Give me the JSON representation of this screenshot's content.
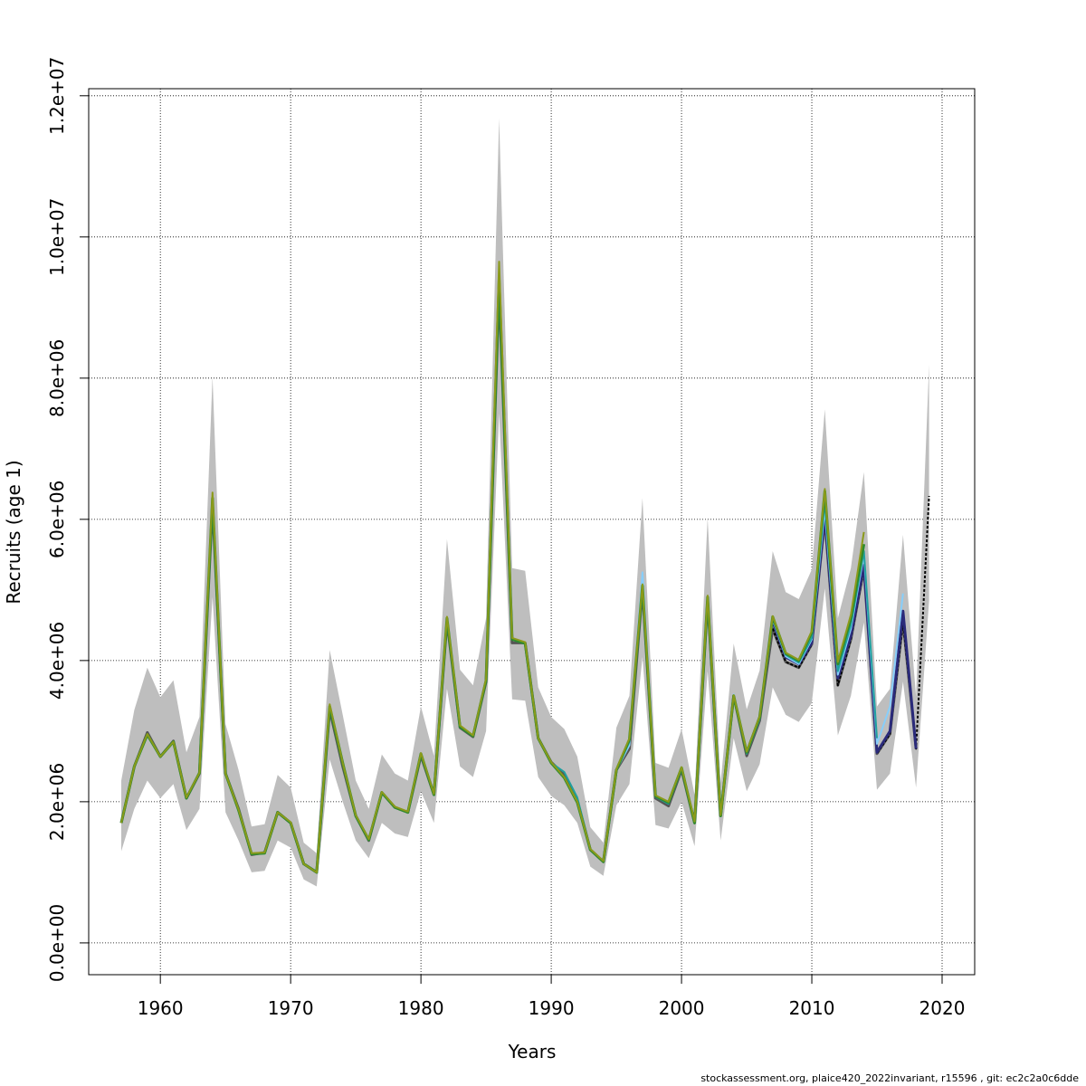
{
  "chart_data": {
    "type": "line",
    "title": "",
    "xlabel": "Years",
    "ylabel": "Recruits (age 1)",
    "xlim": [
      1954.5,
      2022.5
    ],
    "ylim": [
      -450000,
      12100000
    ],
    "xticks": [
      1960,
      1970,
      1980,
      1990,
      2000,
      2010,
      2020
    ],
    "xtick_labels": [
      "1960",
      "1970",
      "1980",
      "1990",
      "2000",
      "2010",
      "2020"
    ],
    "yticks": [
      0,
      2000000,
      4000000,
      6000000,
      8000000,
      10000000,
      12000000
    ],
    "ytick_labels": [
      "0.0e+00",
      "2.0e+06",
      "4.0e+06",
      "6.0e+06",
      "8.0e+06",
      "1.0e+07",
      "1.2e+07"
    ],
    "grid": true,
    "colors": {
      "band": "#bebebe",
      "base": "#555555",
      "latest": "#000000",
      "olive": "#8b9a1a",
      "green": "#2e8b2e",
      "teal": "#20a0a0",
      "navy": "#2a2a7a",
      "lightblue": "#87cefa"
    },
    "band": {
      "x": [
        1957,
        1958,
        1959,
        1960,
        1961,
        1962,
        1963,
        1964,
        1965,
        1966,
        1967,
        1968,
        1969,
        1970,
        1971,
        1972,
        1973,
        1974,
        1975,
        1976,
        1977,
        1978,
        1979,
        1980,
        1981,
        1982,
        1983,
        1984,
        1985,
        1986,
        1987,
        1988,
        1989,
        1990,
        1991,
        1992,
        1993,
        1994,
        1995,
        1996,
        1997,
        1998,
        1999,
        2000,
        2001,
        2002,
        2003,
        2004,
        2005,
        2006,
        2007,
        2008,
        2009,
        2010,
        2011,
        2012,
        2013,
        2014,
        2015,
        2016,
        2017,
        2018,
        2019
      ],
      "lower": [
        1300000,
        1900000,
        2300000,
        2050000,
        2250000,
        1600000,
        1900000,
        4900000,
        1850000,
        1450000,
        1000000,
        1020000,
        1450000,
        1350000,
        900000,
        800000,
        2600000,
        2000000,
        1450000,
        1200000,
        1700000,
        1550000,
        1500000,
        2150000,
        1700000,
        3600000,
        2500000,
        2350000,
        3000000,
        7500000,
        3450000,
        3430000,
        2350000,
        2080000,
        1950000,
        1700000,
        1080000,
        950000,
        1950000,
        2250000,
        4050000,
        1670000,
        1620000,
        2000000,
        1370000,
        3850000,
        1450000,
        2900000,
        2150000,
        2530000,
        3620000,
        3230000,
        3130000,
        3400000,
        5020000,
        2940000,
        3500000,
        4540000,
        2170000,
        2400000,
        3700000,
        2200000,
        4850000
      ],
      "upper": [
        2300000,
        3300000,
        3900000,
        3480000,
        3720000,
        2700000,
        3200000,
        8020000,
        3100000,
        2450000,
        1650000,
        1680000,
        2380000,
        2200000,
        1420000,
        1270000,
        4150000,
        3230000,
        2300000,
        1900000,
        2670000,
        2400000,
        2300000,
        3350000,
        2650000,
        5720000,
        3870000,
        3650000,
        4600000,
        11680000,
        5310000,
        5270000,
        3620000,
        3200000,
        3030000,
        2640000,
        1640000,
        1420000,
        3050000,
        3500000,
        6300000,
        2550000,
        2480000,
        3030000,
        2100000,
        6020000,
        2270000,
        4240000,
        3310000,
        3860000,
        5550000,
        4970000,
        4870000,
        5290000,
        7560000,
        4600000,
        5310000,
        6670000,
        3350000,
        3600000,
        5780000,
        3490000,
        8190000
      ]
    },
    "series": [
      {
        "key": "base",
        "x": [
          1957,
          1958,
          1959,
          1960,
          1961,
          1962,
          1963,
          1964,
          1965,
          1966,
          1967,
          1968,
          1969,
          1970,
          1971,
          1972,
          1973,
          1974,
          1975,
          1976,
          1977,
          1978,
          1979,
          1980,
          1981,
          1982,
          1983,
          1984,
          1985,
          1986,
          1987,
          1988,
          1989,
          1990,
          1991,
          1992,
          1993,
          1994,
          1995,
          1996,
          1997,
          1998,
          1999,
          2000,
          2001,
          2002,
          2003,
          2004,
          2005,
          2006,
          2007,
          2008,
          2009,
          2010,
          2011,
          2012,
          2013,
          2014,
          2015,
          2016,
          2017,
          2018
        ],
        "values": [
          1700000,
          2500000,
          2980000,
          2640000,
          2860000,
          2050000,
          2400000,
          6200000,
          2400000,
          1900000,
          1250000,
          1280000,
          1850000,
          1700000,
          1120000,
          1000000,
          3300000,
          2500000,
          1800000,
          1450000,
          2130000,
          1920000,
          1850000,
          2650000,
          2100000,
          4550000,
          3050000,
          2920000,
          3700000,
          9250000,
          4250000,
          4250000,
          2900000,
          2560000,
          2380000,
          2020000,
          1320000,
          1150000,
          2450000,
          2750000,
          5000000,
          2050000,
          1940000,
          2450000,
          1700000,
          4850000,
          1800000,
          3500000,
          2650000,
          3150000,
          4450000,
          3980000,
          3900000,
          4230000,
          6000000,
          3650000,
          4300000,
          5300000,
          2680000,
          2960000,
          4550000,
          2750000
        ],
        "width": 3
      },
      {
        "key": "latest",
        "x": [
          2007,
          2008,
          2009,
          2010,
          2011,
          2012,
          2013,
          2014,
          2015,
          2016,
          2017,
          2018,
          2019
        ],
        "values": [
          4450000,
          3980000,
          3900000,
          4230000,
          6000000,
          3650000,
          4300000,
          5300000,
          2680000,
          2960000,
          4550000,
          2750000,
          6330000
        ],
        "width": 2,
        "dash": "3,2"
      },
      {
        "key": "navy",
        "x": [
          2007,
          2008,
          2009,
          2010,
          2011,
          2012,
          2013,
          2014,
          2015,
          2016,
          2017,
          2018
        ],
        "values": [
          4550000,
          4050000,
          3950000,
          4250000,
          6050000,
          3750000,
          4350000,
          5350000,
          2700000,
          3000000,
          4700000,
          2750000
        ],
        "width": 3
      },
      {
        "key": "lightblue",
        "x": [
          1995,
          1996,
          1997,
          1998,
          1999,
          2000,
          2001,
          2002,
          2003,
          2004,
          2005,
          2006,
          2007,
          2008,
          2009,
          2010,
          2011,
          2012,
          2013,
          2014,
          2015,
          2016,
          2017
        ],
        "values": [
          2450000,
          2800000,
          5250000,
          2080000,
          1980000,
          2470000,
          1720000,
          4880000,
          1820000,
          3520000,
          2690000,
          3180000,
          4580000,
          4060000,
          3950000,
          4300000,
          6150000,
          3800000,
          4450000,
          5500000,
          2820000,
          3350000,
          4950000
        ],
        "width": 2
      },
      {
        "key": "teal",
        "x": [
          1990,
          1991,
          1992,
          1993,
          1994,
          1995,
          1996,
          1997,
          1998,
          1999,
          2000,
          2001,
          2002,
          2003,
          2004,
          2005,
          2006,
          2007,
          2008,
          2009,
          2010,
          2011,
          2012,
          2013,
          2014,
          2015
        ],
        "values": [
          2550000,
          2420000,
          2060000,
          1330000,
          1150000,
          2450000,
          2850000,
          5050000,
          2070000,
          1970000,
          2460000,
          1710000,
          4870000,
          1810000,
          3510000,
          2680000,
          3170000,
          4600000,
          4080000,
          3970000,
          4320000,
          6250000,
          3850000,
          4500000,
          5550000,
          2900000
        ],
        "width": 2
      },
      {
        "key": "green",
        "x": [
          1957,
          1958,
          1959,
          1960,
          1961,
          1962,
          1963,
          1964,
          1965,
          1966,
          1967,
          1968,
          1969,
          1970,
          1971,
          1972,
          1973,
          1974,
          1975,
          1976,
          1977,
          1978,
          1979,
          1980,
          1981,
          1982,
          1983,
          1984,
          1985,
          1986,
          1987,
          1988,
          1989,
          1990,
          1991,
          1992,
          1993,
          1994,
          1995,
          1996,
          1997,
          1998,
          1999,
          2000,
          2001,
          2002,
          2003,
          2004,
          2005,
          2006,
          2007,
          2008,
          2009,
          2010,
          2011,
          2012,
          2013,
          2014
        ],
        "values": [
          1700000,
          2500000,
          2950000,
          2640000,
          2850000,
          2050000,
          2410000,
          6300000,
          2400000,
          1880000,
          1260000,
          1270000,
          1850000,
          1700000,
          1120000,
          1000000,
          3350000,
          2550000,
          1800000,
          1460000,
          2130000,
          1920000,
          1850000,
          2680000,
          2100000,
          4600000,
          3060000,
          2930000,
          3720000,
          9400000,
          4300000,
          4240000,
          2900000,
          2550000,
          2340000,
          1990000,
          1320000,
          1150000,
          2450000,
          2880000,
          5060000,
          2080000,
          1990000,
          2480000,
          1700000,
          4900000,
          1800000,
          3500000,
          2700000,
          3200000,
          4620000,
          4100000,
          4000000,
          4400000,
          6400000,
          3950000,
          4600000,
          5650000
        ],
        "width": 3
      },
      {
        "key": "olive",
        "x": [
          1957,
          1958,
          1959,
          1960,
          1961,
          1962,
          1963,
          1964,
          1965,
          1966,
          1967,
          1968,
          1969,
          1970,
          1971,
          1972,
          1973,
          1974,
          1975,
          1976,
          1977,
          1978,
          1979,
          1980,
          1981,
          1982,
          1983,
          1984,
          1985,
          1986,
          1987,
          1988,
          1989,
          1990,
          1991,
          1992,
          1993,
          1994,
          1995,
          1996,
          1997,
          1998,
          1999,
          2000,
          2001,
          2002,
          2003,
          2004,
          2005,
          2006,
          2007,
          2008,
          2009,
          2010,
          2011,
          2012,
          2013,
          2014
        ],
        "values": [
          1700000,
          2500000,
          2960000,
          2640000,
          2850000,
          2060000,
          2410000,
          6380000,
          2400000,
          1890000,
          1270000,
          1280000,
          1850000,
          1710000,
          1120000,
          1000000,
          3380000,
          2550000,
          1810000,
          1470000,
          2140000,
          1930000,
          1860000,
          2690000,
          2110000,
          4620000,
          3080000,
          2940000,
          3740000,
          9650000,
          4320000,
          4260000,
          2900000,
          2560000,
          2350000,
          2000000,
          1330000,
          1160000,
          2460000,
          2900000,
          5080000,
          2090000,
          2000000,
          2490000,
          1720000,
          4920000,
          1810000,
          3510000,
          2710000,
          3210000,
          4630000,
          4110000,
          4010000,
          4420000,
          6430000,
          3980000,
          4650000,
          5820000
        ],
        "width": 2
      }
    ]
  },
  "footer_text": "stockassessment.org, plaice420_2022invariant, r15596 , git: ec2c2a0c6dde"
}
